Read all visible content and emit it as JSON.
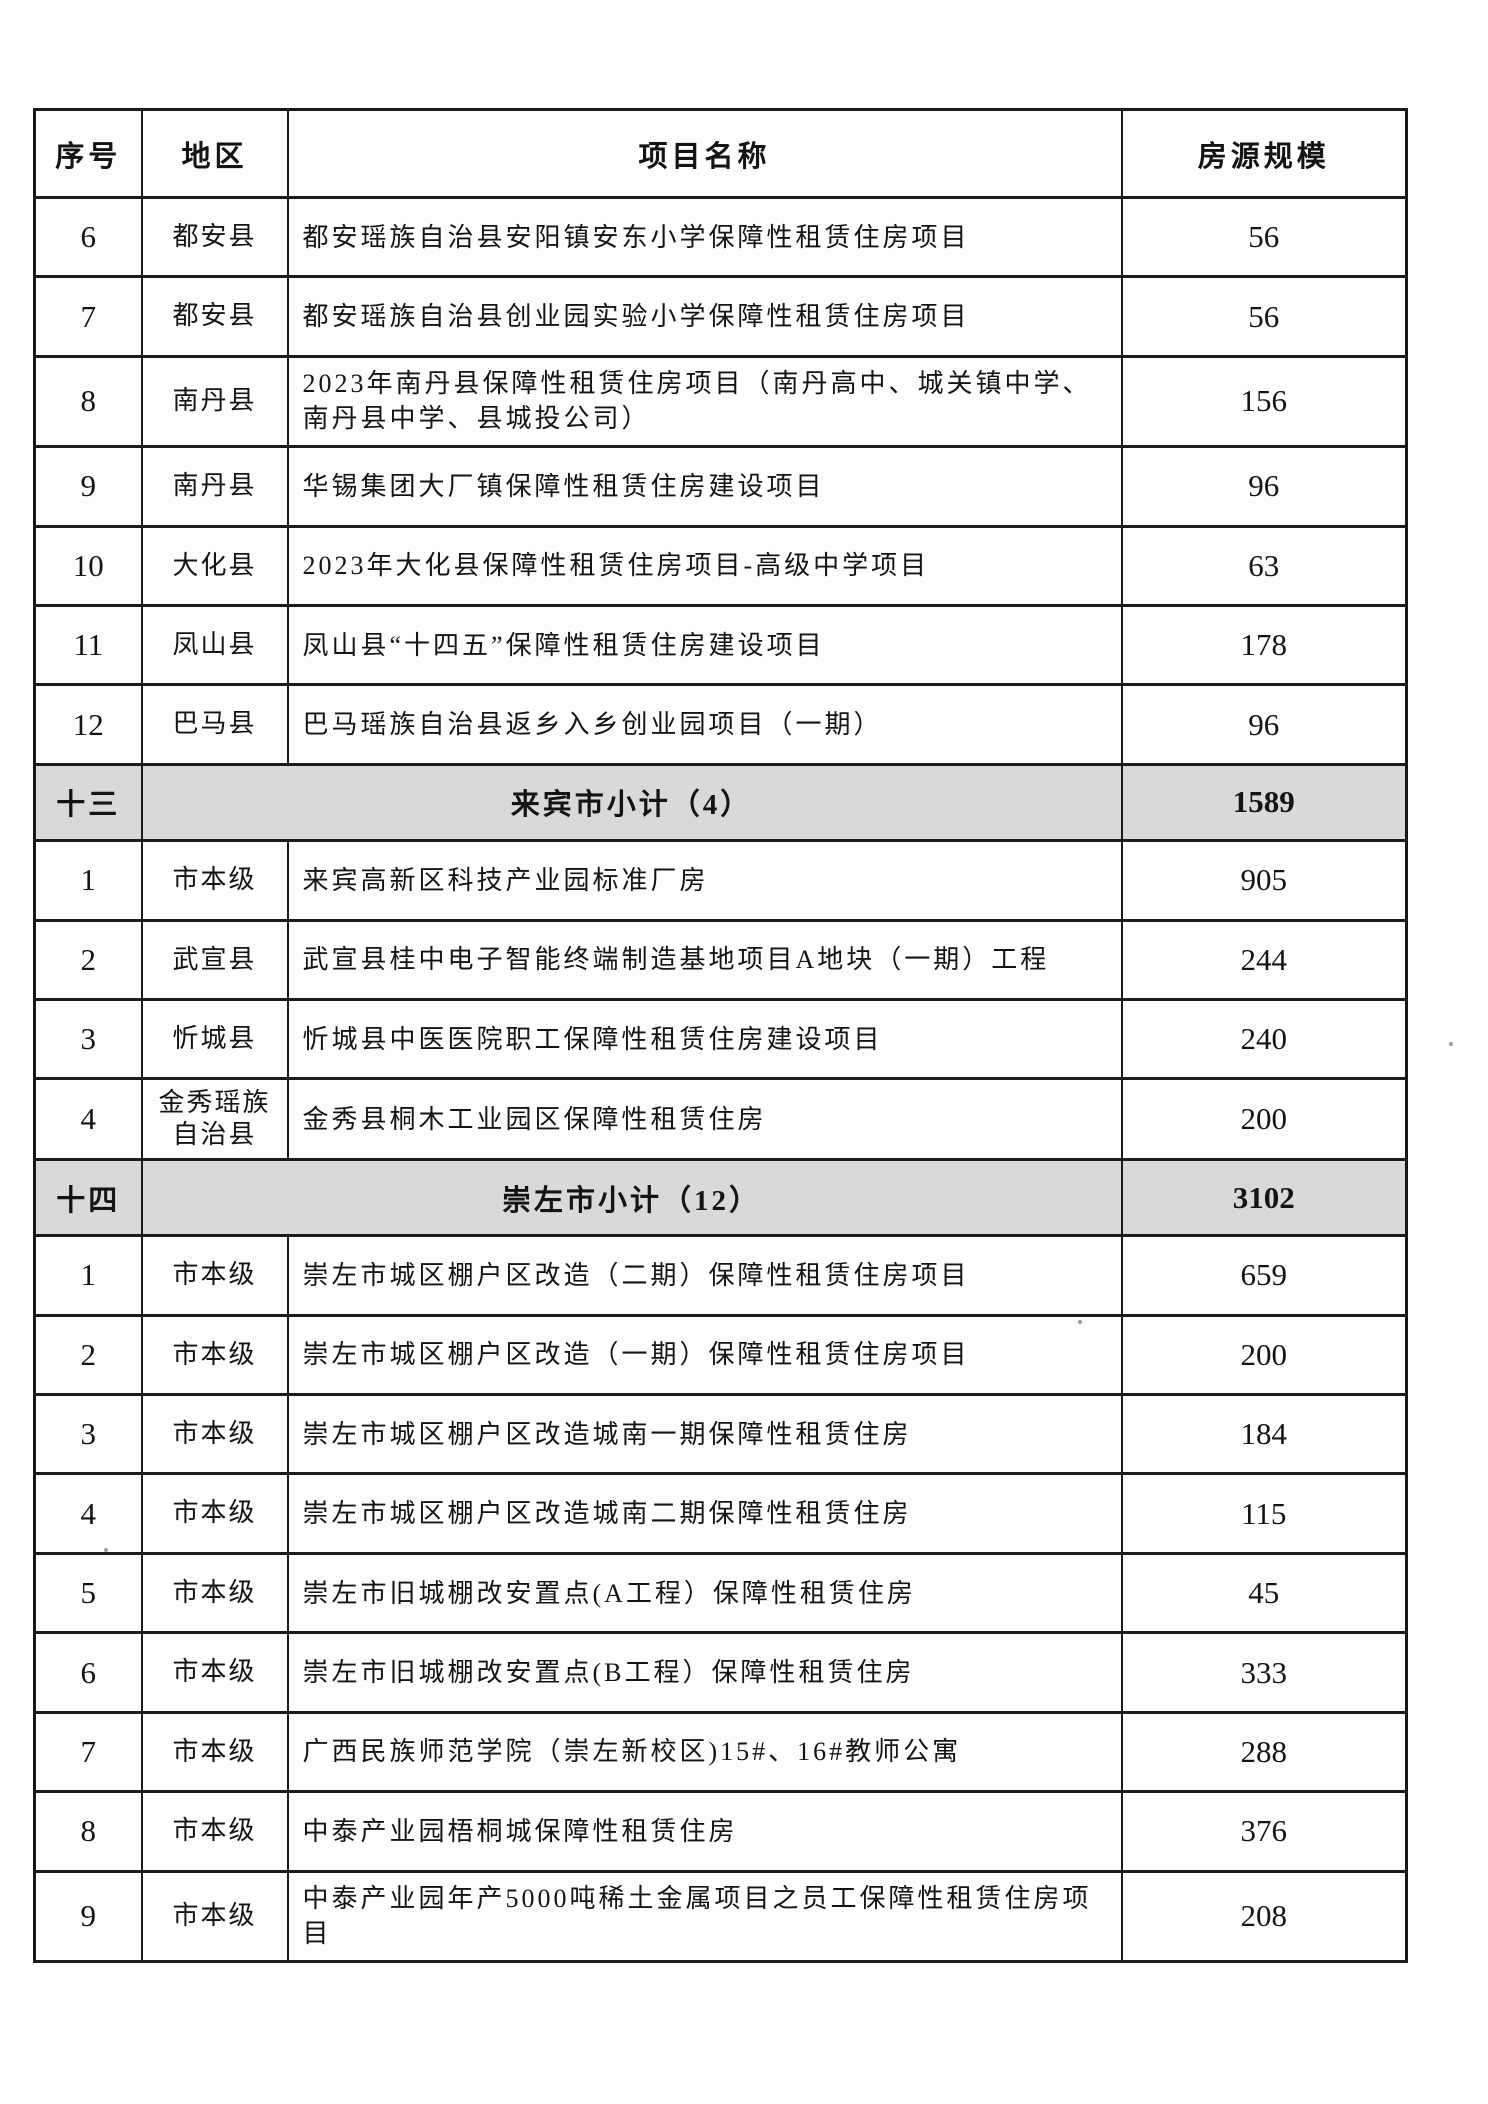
{
  "table": {
    "headers": [
      "序号",
      "地区",
      "项目名称",
      "房源规模"
    ],
    "rows": [
      {
        "type": "data",
        "no": "6",
        "region": "都安县",
        "project": "都安瑶族自治县安阳镇安东小学保障性租赁住房项目",
        "scale": "56"
      },
      {
        "type": "data",
        "no": "7",
        "region": "都安县",
        "project": "都安瑶族自治县创业园实验小学保障性租赁住房项目",
        "scale": "56"
      },
      {
        "type": "data",
        "no": "8",
        "region": "南丹县",
        "project": "2023年南丹县保障性租赁住房项目（南丹高中、城关镇中学、南丹县中学、县城投公司）",
        "scale": "156"
      },
      {
        "type": "data",
        "no": "9",
        "region": "南丹县",
        "project": "华锡集团大厂镇保障性租赁住房建设项目",
        "scale": "96"
      },
      {
        "type": "data",
        "no": "10",
        "region": "大化县",
        "project": "2023年大化县保障性租赁住房项目-高级中学项目",
        "scale": "63"
      },
      {
        "type": "data",
        "no": "11",
        "region": "凤山县",
        "project": "凤山县“十四五”保障性租赁住房建设项目",
        "scale": "178"
      },
      {
        "type": "data",
        "no": "12",
        "region": "巴马县",
        "project": "巴马瑶族自治县返乡入乡创业园项目（一期）",
        "scale": "96"
      },
      {
        "type": "subtotal",
        "no": "十三",
        "label": "来宾市小计（4）",
        "scale": "1589"
      },
      {
        "type": "data",
        "no": "1",
        "region": "市本级",
        "project": "来宾高新区科技产业园标准厂房",
        "scale": "905"
      },
      {
        "type": "data",
        "no": "2",
        "region": "武宣县",
        "project": "武宣县桂中电子智能终端制造基地项目A地块（一期）工程",
        "scale": "244"
      },
      {
        "type": "data",
        "no": "3",
        "region": "忻城县",
        "project": "忻城县中医医院职工保障性租赁住房建设项目",
        "scale": "240"
      },
      {
        "type": "data",
        "no": "4",
        "region": "金秀瑶族自治县",
        "project": "金秀县桐木工业园区保障性租赁住房",
        "scale": "200"
      },
      {
        "type": "subtotal",
        "no": "十四",
        "label": "崇左市小计（12）",
        "scale": "3102"
      },
      {
        "type": "data",
        "no": "1",
        "region": "市本级",
        "project": "崇左市城区棚户区改造（二期）保障性租赁住房项目",
        "scale": "659"
      },
      {
        "type": "data",
        "no": "2",
        "region": "市本级",
        "project": "崇左市城区棚户区改造（一期）保障性租赁住房项目",
        "scale": "200"
      },
      {
        "type": "data",
        "no": "3",
        "region": "市本级",
        "project": "崇左市城区棚户区改造城南一期保障性租赁住房",
        "scale": "184"
      },
      {
        "type": "data",
        "no": "4",
        "region": "市本级",
        "project": "崇左市城区棚户区改造城南二期保障性租赁住房",
        "scale": "115"
      },
      {
        "type": "data",
        "no": "5",
        "region": "市本级",
        "project": "崇左市旧城棚改安置点(A工程）保障性租赁住房",
        "scale": "45"
      },
      {
        "type": "data",
        "no": "6",
        "region": "市本级",
        "project": "崇左市旧城棚改安置点(B工程）保障性租赁住房",
        "scale": "333"
      },
      {
        "type": "data",
        "no": "7",
        "region": "市本级",
        "project": "广西民族师范学院（崇左新校区)15#、16#教师公寓",
        "scale": "288"
      },
      {
        "type": "data",
        "no": "8",
        "region": "市本级",
        "project": "中泰产业园梧桐城保障性租赁住房",
        "scale": "376"
      },
      {
        "type": "data",
        "no": "9",
        "region": "市本级",
        "project": "中泰产业园年产5000吨稀土金属项目之员工保障性租赁住房项目",
        "scale": "208"
      }
    ]
  }
}
